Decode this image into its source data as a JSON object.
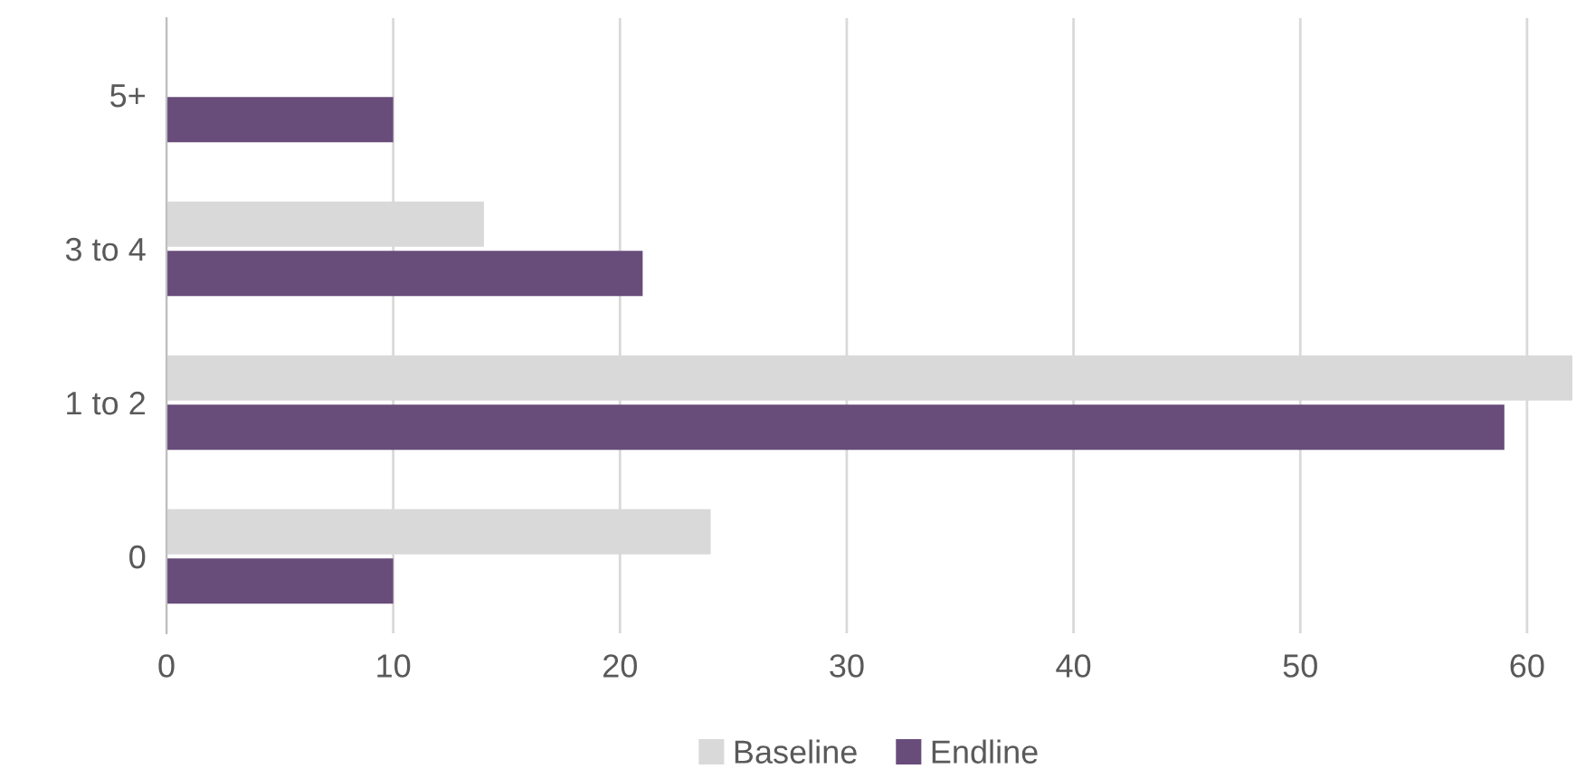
{
  "chart_data": {
    "type": "bar",
    "orientation": "horizontal",
    "categories": [
      "5+",
      "3 to 4",
      "1 to 2",
      "0"
    ],
    "series": [
      {
        "name": "Baseline",
        "color": "#d9d9d9",
        "values": [
          null,
          14,
          62,
          24
        ]
      },
      {
        "name": "Endline",
        "color": "#684c7a",
        "values": [
          10,
          21,
          59,
          10
        ]
      }
    ],
    "xlim": [
      0,
      62
    ],
    "xticks": [
      0,
      10,
      20,
      30,
      40,
      50,
      60
    ],
    "grid": "x",
    "legend": "bottom"
  }
}
